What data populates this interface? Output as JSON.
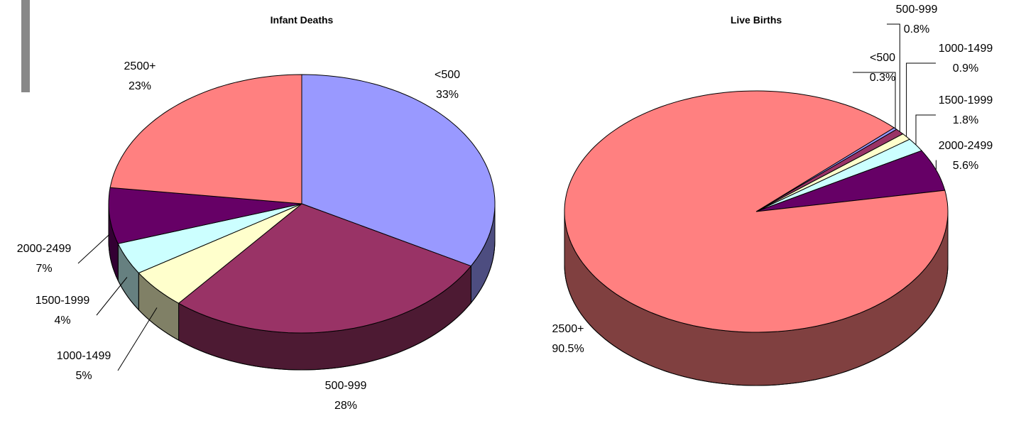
{
  "chart_data": [
    {
      "type": "pie",
      "title": "Infant Deaths",
      "categories": [
        "<500",
        "500-999",
        "1000-1499",
        "1500-1999",
        "2000-2499",
        "2500+"
      ],
      "values": [
        33,
        28,
        5,
        4,
        7,
        23
      ],
      "value_labels": [
        "33%",
        "28%",
        "5%",
        "4%",
        "7%",
        "23%"
      ],
      "colors": [
        "#9999ff",
        "#993366",
        "#ffffcc",
        "#ccffff",
        "#660066",
        "#ff8080"
      ]
    },
    {
      "type": "pie",
      "title": "Live Births",
      "categories": [
        "<500",
        "500-999",
        "1000-1499",
        "1500-1999",
        "2000-2499",
        "2500+"
      ],
      "values": [
        0.3,
        0.8,
        0.9,
        1.8,
        5.6,
        90.5
      ],
      "value_labels": [
        "0.3%",
        "0.8%",
        "0.9%",
        "1.8%",
        "5.6%",
        "90.5%"
      ],
      "colors": [
        "#9999ff",
        "#993366",
        "#ffffcc",
        "#ccffff",
        "#660066",
        "#ff8080"
      ]
    }
  ]
}
